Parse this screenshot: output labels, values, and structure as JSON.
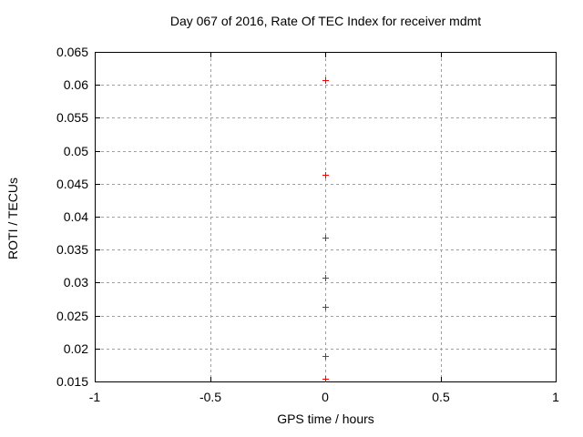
{
  "chart_data": {
    "type": "scatter",
    "title": "Day 067 of 2016, Rate Of TEC Index for receiver mdmt",
    "xlabel": "GPS time / hours",
    "ylabel": "ROTI / TECUs",
    "xlim": [
      -1,
      1
    ],
    "ylim": [
      0.015,
      0.065
    ],
    "xticks": [
      -1,
      -0.5,
      0,
      0.5,
      1
    ],
    "xtick_labels": [
      "-1",
      "-0.5",
      "0",
      "0.5",
      "1"
    ],
    "yticks": [
      0.015,
      0.02,
      0.025,
      0.03,
      0.035,
      0.04,
      0.045,
      0.05,
      0.055,
      0.06,
      0.065
    ],
    "ytick_labels": [
      "0.015",
      "0.02",
      "0.025",
      "0.03",
      "0.035",
      "0.04",
      "0.045",
      "0.05",
      "0.055",
      "0.06",
      "0.065"
    ],
    "grid": true,
    "legend": "none",
    "marker": "plus",
    "series": [
      {
        "points": [
          [
            0,
            0.0607
          ],
          [
            0,
            0.0463
          ],
          [
            0,
            0.0368
          ],
          [
            0,
            0.0307
          ],
          [
            0,
            0.0263
          ],
          [
            0,
            0.0188
          ],
          [
            0,
            0.0154
          ]
        ]
      }
    ]
  },
  "colors": {
    "background": "#ffffff",
    "border": "#000000",
    "grid": "#a0a0a0",
    "marker": "#ff0000",
    "text": "#000000"
  }
}
